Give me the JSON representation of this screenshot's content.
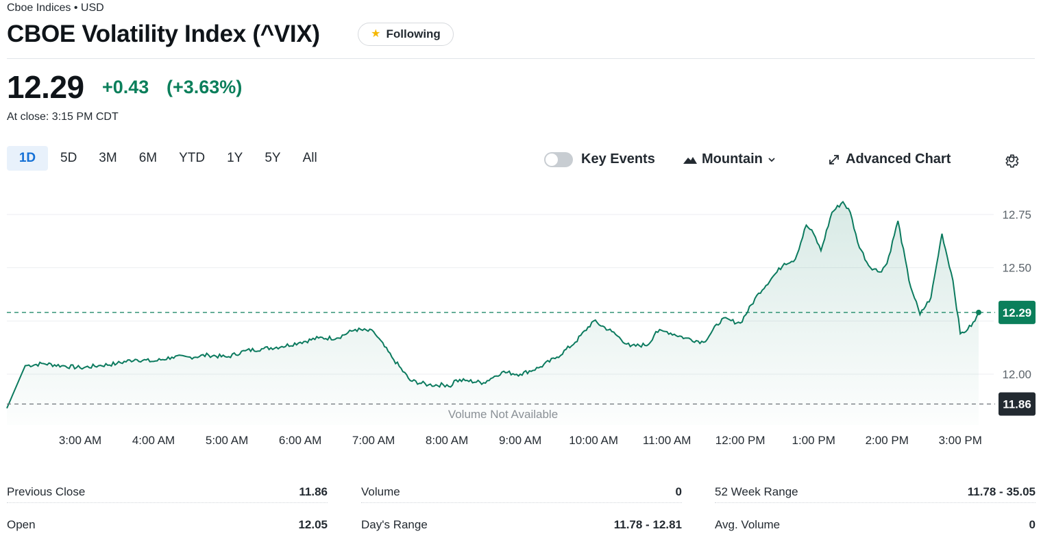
{
  "header": {
    "exchange": "Cboe Indices • USD",
    "title": "CBOE Volatility Index (^VIX)",
    "follow_label": "Following"
  },
  "quote": {
    "price": "12.29",
    "change": "+0.43",
    "change_pct": "(+3.63%)",
    "close_time": "At close: 3:15 PM CDT"
  },
  "ranges": [
    "1D",
    "5D",
    "3M",
    "6M",
    "YTD",
    "1Y",
    "5Y",
    "All"
  ],
  "active_range": "1D",
  "toolbar": {
    "key_events": "Key Events",
    "chart_type": "Mountain",
    "advanced_chart": "Advanced Chart"
  },
  "colors": {
    "up": "#0b7f5b",
    "line": "#0b7a5e",
    "active_tab_bg": "#e8f1fb",
    "active_tab_text": "#1470d6",
    "prev_close_badge": "#232a31"
  },
  "chart_data": {
    "type": "area",
    "x_ticks": [
      "3:00 AM",
      "4:00 AM",
      "5:00 AM",
      "6:00 AM",
      "7:00 AM",
      "8:00 AM",
      "9:00 AM",
      "10:00 AM",
      "11:00 AM",
      "12:00 PM",
      "1:00 PM",
      "2:00 PM",
      "3:00 PM"
    ],
    "y_ticks": [
      "12.75",
      "12.50",
      "12.00"
    ],
    "ylim": [
      11.78,
      12.81
    ],
    "last_label": "12.29",
    "prev_close_label": "11.86",
    "prev_close": 11.86,
    "last": 12.29,
    "volume_note": "Volume Not Available",
    "series": [
      {
        "x_hours": [
          2.0,
          2.25,
          2.5,
          2.75,
          3.0,
          3.25,
          3.5,
          3.75,
          4.0,
          4.25,
          4.5,
          4.75,
          5.0,
          5.25,
          5.5,
          5.75,
          6.0,
          6.25,
          6.5,
          6.75,
          7.0,
          7.25,
          7.5,
          7.75,
          8.0,
          8.05,
          8.1,
          8.25,
          8.5,
          8.6,
          8.75,
          9.0,
          9.25,
          9.5,
          9.75,
          10.0,
          10.25,
          10.5,
          10.75,
          10.85,
          11.0,
          11.25,
          11.5,
          11.75,
          12.0,
          12.25,
          12.5,
          12.6,
          12.75,
          12.9,
          13.0,
          13.1,
          13.25,
          13.4,
          13.5,
          13.6,
          13.75,
          13.9,
          14.0,
          14.15,
          14.3,
          14.45,
          14.6,
          14.75,
          14.9,
          15.0,
          15.1,
          15.2,
          15.25
        ],
        "values": [
          11.84,
          12.04,
          12.05,
          12.04,
          12.03,
          12.04,
          12.05,
          12.07,
          12.06,
          12.08,
          12.08,
          12.09,
          12.08,
          12.11,
          12.12,
          12.13,
          12.15,
          12.17,
          12.17,
          12.21,
          12.2,
          12.08,
          11.97,
          11.95,
          11.95,
          11.94,
          11.97,
          11.97,
          11.96,
          11.98,
          12.01,
          12.0,
          12.03,
          12.08,
          12.15,
          12.25,
          12.2,
          12.13,
          12.14,
          12.2,
          12.2,
          12.17,
          12.15,
          12.26,
          12.24,
          12.38,
          12.48,
          12.52,
          12.54,
          12.7,
          12.66,
          12.58,
          12.76,
          12.81,
          12.76,
          12.62,
          12.51,
          12.48,
          12.52,
          12.72,
          12.44,
          12.28,
          12.36,
          12.66,
          12.44,
          12.19,
          12.21,
          12.25,
          12.29
        ]
      }
    ]
  },
  "stats": [
    {
      "label": "Previous Close",
      "value": "11.86"
    },
    {
      "label": "Open",
      "value": "12.05"
    },
    {
      "label": "Volume",
      "value": "0"
    },
    {
      "label": "Day's Range",
      "value": "11.78 - 12.81"
    },
    {
      "label": "52 Week Range",
      "value": "11.78 - 35.05"
    },
    {
      "label": "Avg. Volume",
      "value": "0"
    }
  ]
}
